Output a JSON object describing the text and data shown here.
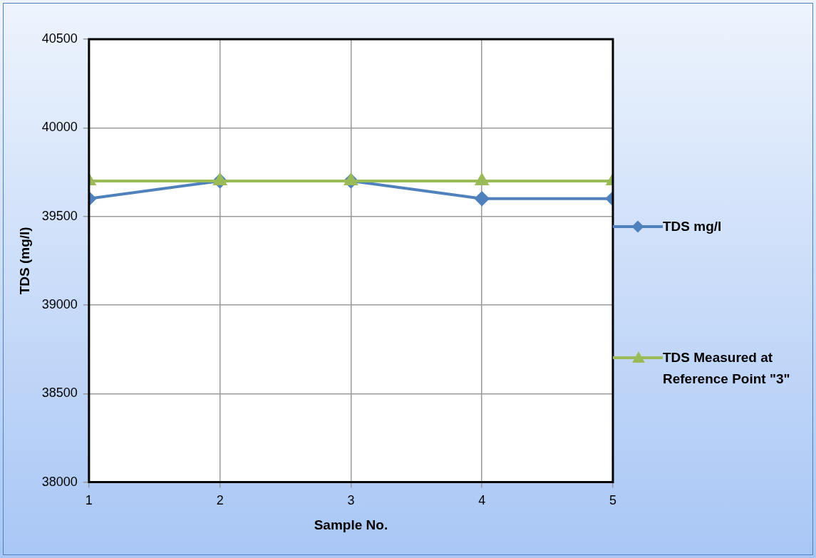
{
  "chart_data": {
    "type": "line",
    "xlabel": "Sample No.",
    "ylabel": "TDS (mg/l)",
    "x": [
      1,
      2,
      3,
      4,
      5
    ],
    "xlim": [
      1,
      5
    ],
    "xticks": [
      1,
      2,
      3,
      4,
      5
    ],
    "ylim": [
      38000,
      40500
    ],
    "yticks": [
      38000,
      38500,
      39000,
      39500,
      40000,
      40500
    ],
    "series": [
      {
        "name": "TDS  mg/l",
        "color": "#4f81bd",
        "marker": "diamond",
        "values": [
          39600,
          39700,
          39700,
          39600,
          39600
        ]
      },
      {
        "name": "TDS Measured at Reference Point \"3\"",
        "color": "#9bbb59",
        "marker": "triangle",
        "values": [
          39700,
          39700,
          39700,
          39700,
          39700
        ]
      }
    ],
    "grid": true,
    "legend": "right",
    "line_style": "solid"
  }
}
